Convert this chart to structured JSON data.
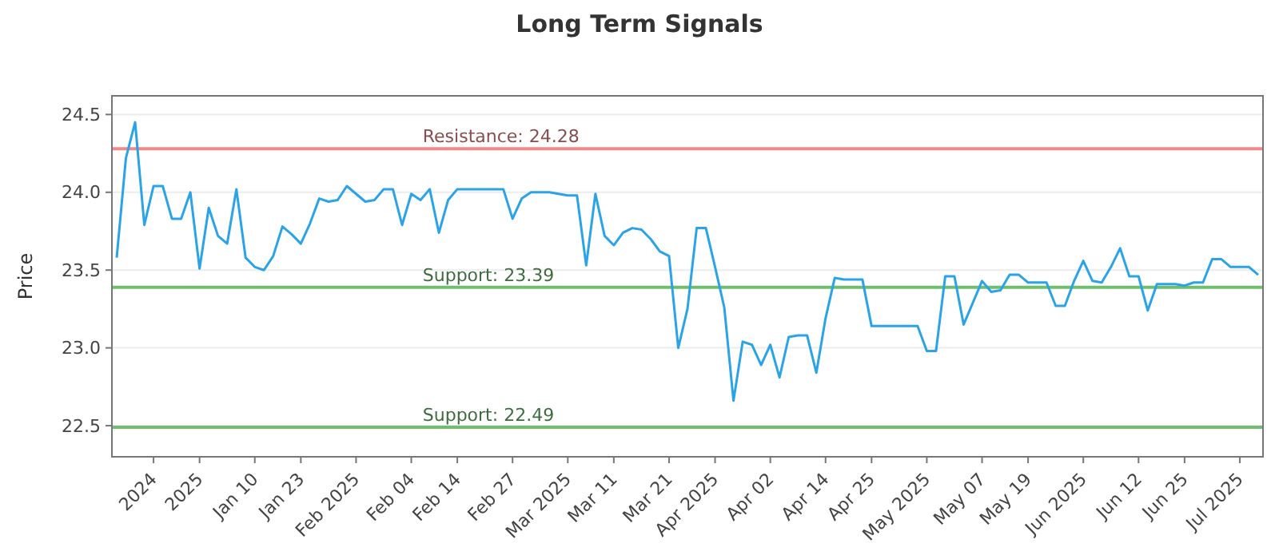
{
  "chart_data": {
    "type": "line",
    "title": "Long Term Signals",
    "ylabel": "Price",
    "categories": [
      null,
      null,
      null,
      null,
      "2024",
      null,
      null,
      null,
      null,
      "2025",
      null,
      null,
      null,
      null,
      null,
      "Jan 10",
      null,
      null,
      null,
      null,
      "Jan 23",
      null,
      null,
      null,
      null,
      null,
      "Feb 2025",
      null,
      null,
      null,
      null,
      null,
      "Feb 04",
      null,
      null,
      null,
      null,
      "Feb 14",
      null,
      null,
      null,
      null,
      null,
      "Feb 27",
      null,
      null,
      null,
      null,
      null,
      "Mar 2025",
      null,
      null,
      null,
      null,
      "Mar 11",
      null,
      null,
      null,
      null,
      null,
      "Mar 21",
      null,
      null,
      null,
      null,
      "Apr 2025",
      null,
      null,
      null,
      null,
      null,
      "Apr 02",
      null,
      null,
      null,
      null,
      null,
      "Apr 14",
      null,
      null,
      null,
      null,
      "Apr 25",
      null,
      null,
      null,
      null,
      null,
      "May 2025",
      null,
      null,
      null,
      null,
      null,
      "May 07",
      null,
      null,
      null,
      null,
      "May 19",
      null,
      null,
      null,
      null,
      null,
      "Jun 2025",
      null,
      null,
      null,
      null,
      null,
      "Jun 12",
      null,
      null,
      null,
      null,
      "Jun 25",
      null,
      null,
      null,
      null,
      null,
      "Jul 2025",
      null,
      null
    ],
    "series": [
      {
        "color": "#2aa3e8",
        "values": [
          23.58,
          24.22,
          24.45,
          23.79,
          24.04,
          24.04,
          23.83,
          23.83,
          24.0,
          23.51,
          23.9,
          23.72,
          23.67,
          24.02,
          23.58,
          23.52,
          23.5,
          23.59,
          23.78,
          23.73,
          23.67,
          23.8,
          23.96,
          23.94,
          23.95,
          24.04,
          23.99,
          23.94,
          23.95,
          24.02,
          24.02,
          23.79,
          23.99,
          23.95,
          24.02,
          23.74,
          23.95,
          24.02,
          24.02,
          24.02,
          24.02,
          24.02,
          24.02,
          23.83,
          23.96,
          24.0,
          24.0,
          24.0,
          23.99,
          23.98,
          23.98,
          23.53,
          23.99,
          23.72,
          23.66,
          23.74,
          23.77,
          23.76,
          23.7,
          23.62,
          23.59,
          23.0,
          23.25,
          23.77,
          23.77,
          23.52,
          23.26,
          22.66,
          23.04,
          23.02,
          22.89,
          23.02,
          22.81,
          23.07,
          23.08,
          23.08,
          22.84,
          23.19,
          23.45,
          23.44,
          23.44,
          23.44,
          23.14,
          23.14,
          23.14,
          23.14,
          23.14,
          23.14,
          22.98,
          22.98,
          23.46,
          23.46,
          23.15,
          23.29,
          23.43,
          23.36,
          23.37,
          23.47,
          23.47,
          23.42,
          23.42,
          23.42,
          23.27,
          23.27,
          23.43,
          23.56,
          23.43,
          23.42,
          23.52,
          23.64,
          23.46,
          23.46,
          23.24,
          23.41,
          23.41,
          23.41,
          23.4,
          23.42,
          23.42,
          23.57,
          23.57,
          23.52,
          23.52,
          23.52,
          23.47
        ]
      }
    ],
    "ylim": [
      22.3,
      24.62
    ],
    "yticks": [
      22.5,
      {
        "value": 23,
        "label": "23.0"
      },
      23.5,
      {
        "value": 24,
        "label": "24.0"
      },
      24.5
    ],
    "grid": "y",
    "marker": "none",
    "line_style": "solid",
    "ref_lines": [
      {
        "axis": "y",
        "value": 24.28,
        "label": "Resistance: 24.28",
        "color": "#f08a8a"
      },
      {
        "axis": "y",
        "value": 23.39,
        "label": "Support: 23.39",
        "color": "#6fbf6f"
      },
      {
        "axis": "y",
        "value": 22.49,
        "label": "Support: 22.49",
        "color": "#6fbf6f"
      }
    ]
  }
}
